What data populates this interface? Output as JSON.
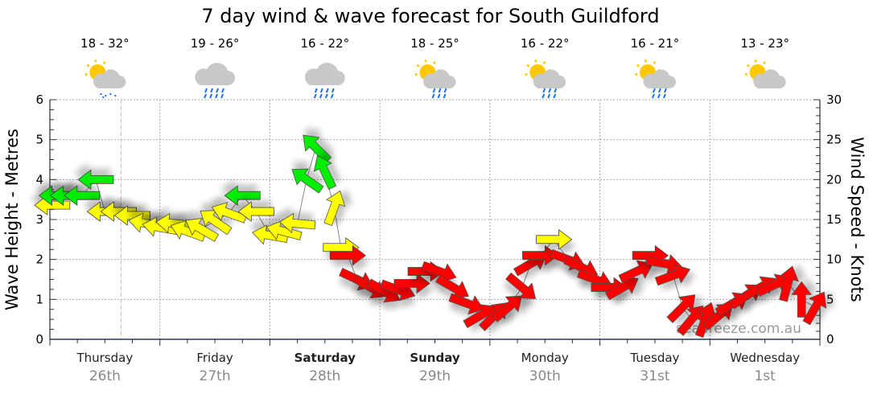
{
  "title": "7 day wind & wave forecast for South Guildford",
  "watermark": "seabreeze.com.au",
  "colors": {
    "green": "#00ee00",
    "yellow": "#ffff00",
    "red": "#ff0000",
    "grid": "#aaaaaa",
    "now_line": "#f4a0a0",
    "rain": "#1a6fff",
    "sun": "#ffc800",
    "cloud": "#c8c8c8"
  },
  "days": [
    {
      "name": "Thursday",
      "date": "26th",
      "temp": "18 - 32°",
      "icon": "sun-cloud-drizzle-icon",
      "bold": false
    },
    {
      "name": "Friday",
      "date": "27th",
      "temp": "19 - 26°",
      "icon": "rain-cloud-icon",
      "bold": false
    },
    {
      "name": "Saturday",
      "date": "28th",
      "temp": "16 - 22°",
      "icon": "rain-cloud-icon",
      "bold": true
    },
    {
      "name": "Sunday",
      "date": "29th",
      "temp": "18 - 25°",
      "icon": "sun-cloud-showers-icon",
      "bold": true
    },
    {
      "name": "Monday",
      "date": "30th",
      "temp": "16 - 22°",
      "icon": "sun-cloud-showers-icon",
      "bold": false
    },
    {
      "name": "Tuesday",
      "date": "31st",
      "temp": "16 - 21°",
      "icon": "sun-cloud-showers-icon",
      "bold": false
    },
    {
      "name": "Wednesday",
      "date": "1st",
      "temp": "13 - 23°",
      "icon": "sun-cloud-icon",
      "bold": false
    }
  ],
  "chart_data": {
    "type": "scatter",
    "title": "7 day wind & wave forecast for South Guildford",
    "ylabel_left": "Wave Height - Metres",
    "ylabel_right": "Wind Speed - Knots",
    "ylim_left": [
      0,
      6
    ],
    "ylim_right": [
      0,
      30
    ],
    "yticks_left": [
      "0",
      "1",
      "2",
      "3",
      "4",
      "5",
      "6"
    ],
    "yticks_right": [
      "0",
      "5",
      "10",
      "15",
      "20",
      "25",
      "30"
    ],
    "x_unit": "hours from Thursday 00:00",
    "xlim": [
      0,
      168
    ],
    "now_hour": 15.5,
    "grid": true,
    "wind": [
      {
        "h": 0.5,
        "kt": 16.8,
        "dir": 180,
        "c": "yellow"
      },
      {
        "h": 1.5,
        "kt": 18.0,
        "dir": 180,
        "c": "green"
      },
      {
        "h": 4,
        "kt": 18.0,
        "dir": 180,
        "c": "green"
      },
      {
        "h": 7,
        "kt": 18.0,
        "dir": 180,
        "c": "green"
      },
      {
        "h": 10,
        "kt": 20.0,
        "dir": 180,
        "c": "green"
      },
      {
        "h": 12,
        "kt": 16.0,
        "dir": 180,
        "c": "yellow"
      },
      {
        "h": 15,
        "kt": 16.0,
        "dir": 180,
        "c": "yellow"
      },
      {
        "h": 18,
        "kt": 15.5,
        "dir": 180,
        "c": "yellow"
      },
      {
        "h": 21,
        "kt": 14.5,
        "dir": 190,
        "c": "yellow"
      },
      {
        "h": 24,
        "kt": 14.0,
        "dir": 190,
        "c": "yellow"
      },
      {
        "h": 27,
        "kt": 14.5,
        "dir": 185,
        "c": "yellow"
      },
      {
        "h": 30,
        "kt": 13.5,
        "dir": 200,
        "c": "yellow"
      },
      {
        "h": 33,
        "kt": 13.8,
        "dir": 210,
        "c": "yellow"
      },
      {
        "h": 36,
        "kt": 14.8,
        "dir": 215,
        "c": "yellow"
      },
      {
        "h": 39,
        "kt": 15.8,
        "dir": 200,
        "c": "yellow"
      },
      {
        "h": 42,
        "kt": 18.0,
        "dir": 180,
        "c": "green"
      },
      {
        "h": 45,
        "kt": 16.0,
        "dir": 180,
        "c": "yellow"
      },
      {
        "h": 48,
        "kt": 13.0,
        "dir": 190,
        "c": "yellow"
      },
      {
        "h": 51,
        "kt": 13.5,
        "dir": 195,
        "c": "yellow"
      },
      {
        "h": 54,
        "kt": 14.5,
        "dir": 185,
        "c": "yellow"
      },
      {
        "h": 56,
        "kt": 20.0,
        "dir": 215,
        "c": "green"
      },
      {
        "h": 58,
        "kt": 24.0,
        "dir": 225,
        "c": "green"
      },
      {
        "h": 60,
        "kt": 21.0,
        "dir": 245,
        "c": "green"
      },
      {
        "h": 62,
        "kt": 16.5,
        "dir": 290,
        "c": "yellow"
      },
      {
        "h": 63.5,
        "kt": 11.5,
        "dir": 0,
        "c": "yellow"
      },
      {
        "h": 65,
        "kt": 10.5,
        "dir": 0,
        "c": "red"
      },
      {
        "h": 67,
        "kt": 7.5,
        "dir": 25,
        "c": "red"
      },
      {
        "h": 70,
        "kt": 6.5,
        "dir": 30,
        "c": "red"
      },
      {
        "h": 73,
        "kt": 6.0,
        "dir": 30,
        "c": "red"
      },
      {
        "h": 76,
        "kt": 6.2,
        "dir": 20,
        "c": "red"
      },
      {
        "h": 79,
        "kt": 7.0,
        "dir": 0,
        "c": "red"
      },
      {
        "h": 82,
        "kt": 8.5,
        "dir": 0,
        "c": "red"
      },
      {
        "h": 85,
        "kt": 8.5,
        "dir": 20,
        "c": "red"
      },
      {
        "h": 88,
        "kt": 6.5,
        "dir": 30,
        "c": "red"
      },
      {
        "h": 91,
        "kt": 4.5,
        "dir": 20,
        "c": "red"
      },
      {
        "h": 94,
        "kt": 3.0,
        "dir": -30,
        "c": "red"
      },
      {
        "h": 97,
        "kt": 3.0,
        "dir": -45,
        "c": "red"
      },
      {
        "h": 100,
        "kt": 4.0,
        "dir": -40,
        "c": "red"
      },
      {
        "h": 103,
        "kt": 6.5,
        "dir": 40,
        "c": "red"
      },
      {
        "h": 105,
        "kt": 9.5,
        "dir": -30,
        "c": "red"
      },
      {
        "h": 107,
        "kt": 10.5,
        "dir": 0,
        "c": "red"
      },
      {
        "h": 110,
        "kt": 12.5,
        "dir": 0,
        "c": "yellow"
      },
      {
        "h": 113,
        "kt": 10.0,
        "dir": 20,
        "c": "red"
      },
      {
        "h": 116,
        "kt": 9.0,
        "dir": 25,
        "c": "red"
      },
      {
        "h": 119,
        "kt": 7.5,
        "dir": 20,
        "c": "red"
      },
      {
        "h": 122,
        "kt": 6.5,
        "dir": 0,
        "c": "red"
      },
      {
        "h": 125,
        "kt": 6.5,
        "dir": -30,
        "c": "red"
      },
      {
        "h": 128,
        "kt": 8.5,
        "dir": -25,
        "c": "red"
      },
      {
        "h": 131,
        "kt": 10.5,
        "dir": 0,
        "c": "red"
      },
      {
        "h": 134,
        "kt": 9.5,
        "dir": 10,
        "c": "red"
      },
      {
        "h": 136,
        "kt": 8.0,
        "dir": -20,
        "c": "red"
      },
      {
        "h": 138,
        "kt": 4.0,
        "dir": -45,
        "c": "red"
      },
      {
        "h": 140,
        "kt": 2.5,
        "dir": -50,
        "c": "red"
      },
      {
        "h": 143,
        "kt": 2.5,
        "dir": -70,
        "c": "red"
      },
      {
        "h": 146,
        "kt": 3.0,
        "dir": -40,
        "c": "red"
      },
      {
        "h": 149,
        "kt": 4.5,
        "dir": -30,
        "c": "red"
      },
      {
        "h": 152,
        "kt": 5.5,
        "dir": -35,
        "c": "red"
      },
      {
        "h": 155,
        "kt": 6.5,
        "dir": -30,
        "c": "red"
      },
      {
        "h": 158,
        "kt": 6.8,
        "dir": -25,
        "c": "red"
      },
      {
        "h": 161,
        "kt": 7.0,
        "dir": -75,
        "c": "red"
      },
      {
        "h": 164,
        "kt": 5.0,
        "dir": -90,
        "c": "red"
      },
      {
        "h": 167,
        "kt": 4.0,
        "dir": -60,
        "c": "red"
      }
    ]
  }
}
